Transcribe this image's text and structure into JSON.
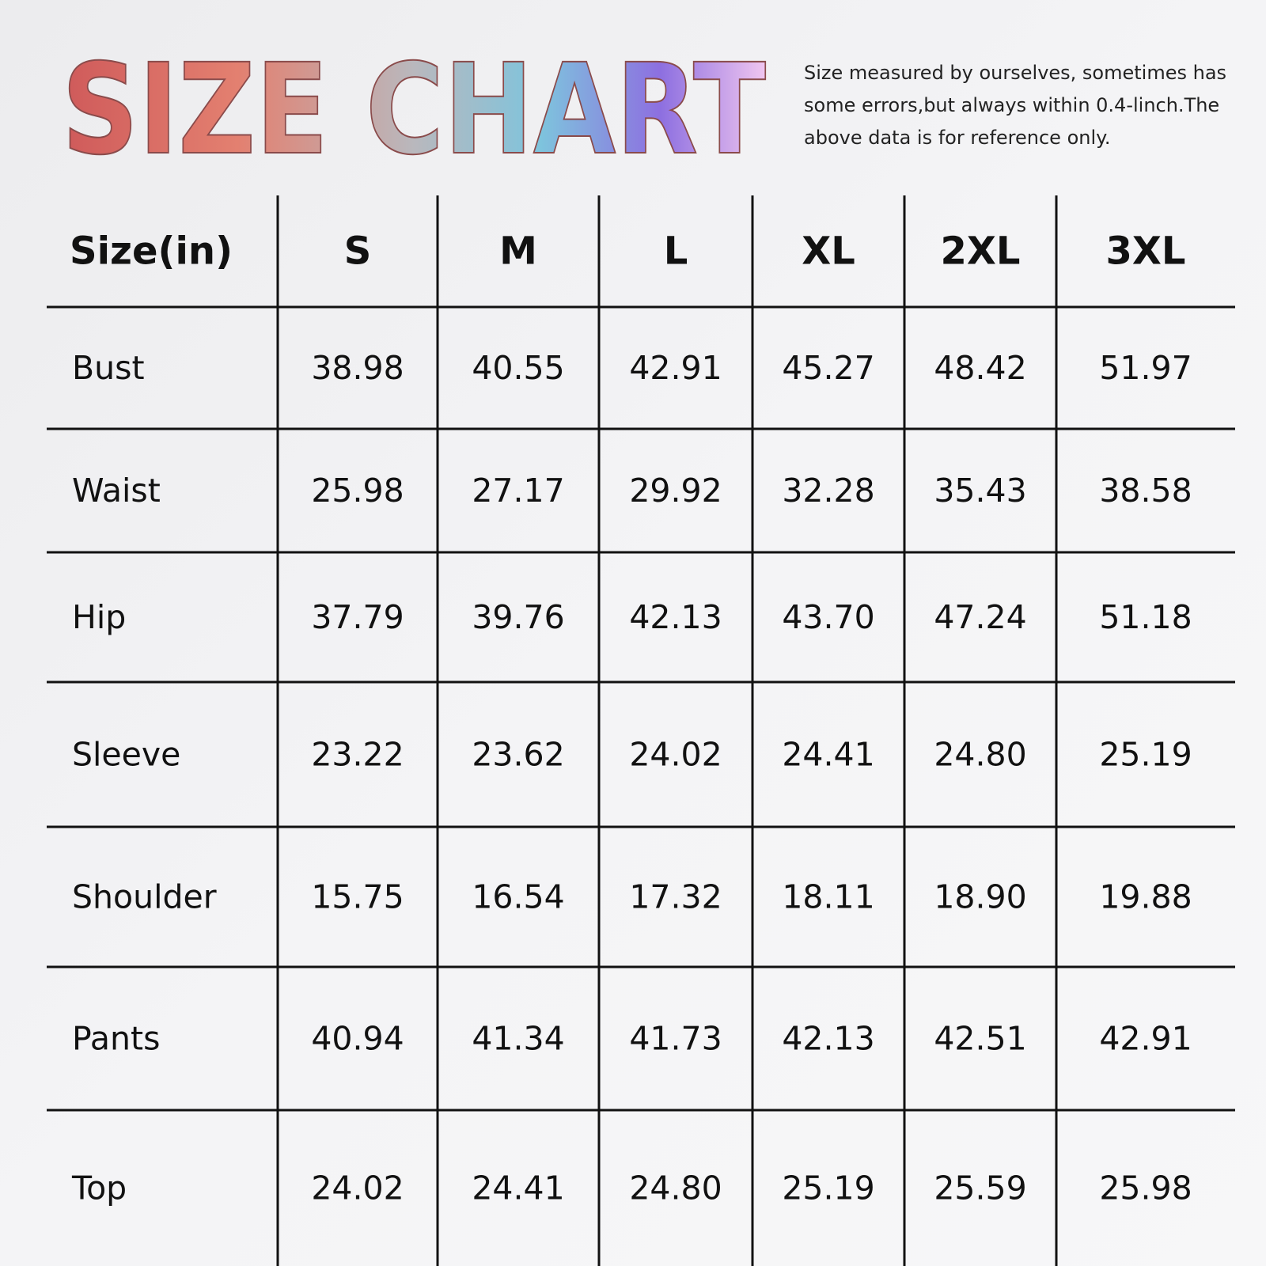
{
  "header": {
    "title": "SIZE CHART",
    "note": [
      "Size measured by ourselves, sometimes has",
      "some errors,but always within 0.4-linch.The",
      "above data is for reference only."
    ]
  },
  "table": {
    "columns": [
      "Size(in)",
      "S",
      "M",
      "L",
      "XL",
      "2XL",
      "3XL"
    ],
    "rows": [
      [
        "Bust",
        "38.98",
        "40.55",
        "42.91",
        "45.27",
        "48.42",
        "51.97"
      ],
      [
        "Waist",
        "25.98",
        "27.17",
        "29.92",
        "32.28",
        "35.43",
        "38.58"
      ],
      [
        "Hip",
        "37.79",
        "39.76",
        "42.13",
        "43.70",
        "47.24",
        "51.18"
      ],
      [
        "Sleeve",
        "23.22",
        "23.62",
        "24.02",
        "24.41",
        "24.80",
        "25.19"
      ],
      [
        "Shoulder",
        "15.75",
        "16.54",
        "17.32",
        "18.11",
        "18.90",
        "19.88"
      ],
      [
        "Pants",
        "40.94",
        "41.34",
        "41.73",
        "42.13",
        "42.51",
        "42.91"
      ],
      [
        "Top",
        "24.02",
        "24.41",
        "24.80",
        "25.19",
        "25.59",
        "25.98"
      ]
    ]
  }
}
